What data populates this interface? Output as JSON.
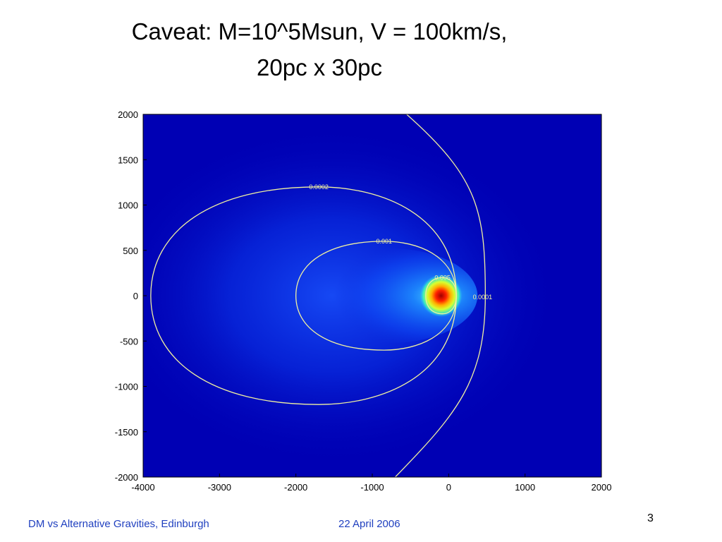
{
  "slide": {
    "title_line1": "Caveat: M=10^5Msun, V = 100km/s,",
    "title_line2": "20pc x 30pc",
    "footer_left": "DM vs Alternative Gravities, Edinburgh",
    "footer_center": "22 April 2006",
    "page_number": "3"
  },
  "chart_data": {
    "type": "heatmap",
    "title": "",
    "xlabel": "",
    "ylabel": "",
    "xlim": [
      -4000,
      2000
    ],
    "ylim": [
      -2000,
      2000
    ],
    "x_ticks": [
      -4000,
      -3000,
      -2000,
      -1000,
      0,
      1000,
      2000
    ],
    "y_ticks": [
      2000,
      1500,
      1000,
      500,
      0,
      -500,
      -1000,
      -1500,
      -2000
    ],
    "peak": {
      "x": -100,
      "y": 0
    },
    "contours": [
      {
        "label": "0.005",
        "type": "closed",
        "x_min": -300,
        "x_max": 100,
        "y_min": -200,
        "y_max": 200
      },
      {
        "label": "0.001",
        "type": "closed",
        "x_min": -2000,
        "x_max": 100,
        "y_min": -600,
        "y_max": 600
      },
      {
        "label": "0.0002",
        "type": "closed",
        "x_min": -3900,
        "x_max": 100,
        "y_min": -1200,
        "y_max": 1200
      },
      {
        "label": "0.0001",
        "type": "open",
        "vertex_x": 480,
        "top_x": -550,
        "bottom_x": -700
      }
    ],
    "colors": {
      "background": "#0000b4",
      "glow": "#0a3cff",
      "peak": "#c80000",
      "contour": "#f0f0a0"
    },
    "grid": false
  }
}
